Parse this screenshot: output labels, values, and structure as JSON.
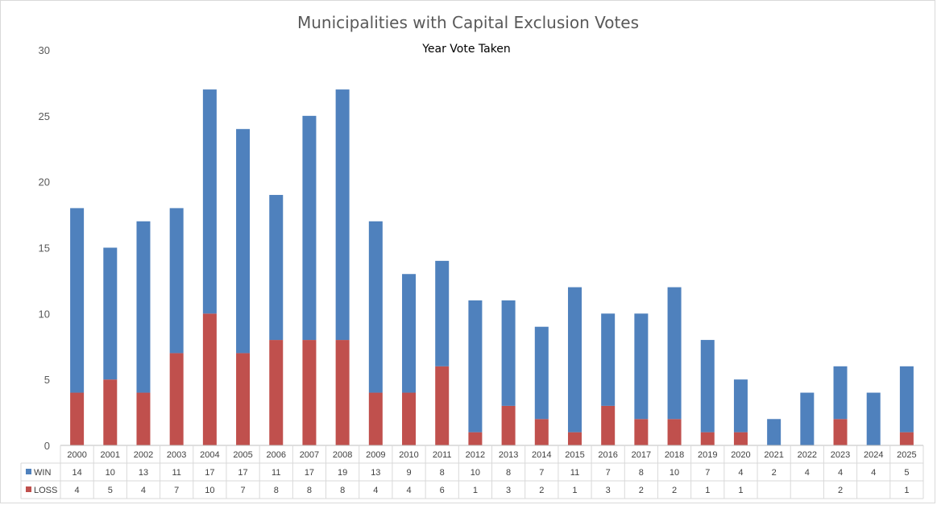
{
  "chart_data": {
    "type": "bar",
    "stacked": true,
    "title": "Municipalities with Capital Exclusion Votes",
    "subtitle": "Year Vote Taken",
    "categories": [
      "2000",
      "2001",
      "2002",
      "2003",
      "2004",
      "2005",
      "2006",
      "2007",
      "2008",
      "2009",
      "2010",
      "2011",
      "2012",
      "2013",
      "2014",
      "2015",
      "2016",
      "2017",
      "2018",
      "2019",
      "2020",
      "2021",
      "2022",
      "2023",
      "2024",
      "2025"
    ],
    "series": [
      {
        "name": "LOSS",
        "color": "#c0504d",
        "values": [
          4,
          5,
          4,
          7,
          10,
          7,
          8,
          8,
          8,
          4,
          4,
          6,
          1,
          3,
          2,
          1,
          3,
          2,
          2,
          1,
          1,
          null,
          null,
          2,
          null,
          1
        ]
      },
      {
        "name": "WIN",
        "color": "#4f81bd",
        "values": [
          14,
          10,
          13,
          11,
          17,
          17,
          11,
          17,
          19,
          13,
          9,
          8,
          10,
          8,
          7,
          11,
          7,
          8,
          10,
          7,
          4,
          2,
          4,
          4,
          4,
          5
        ]
      }
    ],
    "ylim": [
      0,
      30
    ],
    "yticks": [
      0,
      5,
      10,
      15,
      20,
      25,
      30
    ],
    "grid": false,
    "legend": "data-table"
  }
}
